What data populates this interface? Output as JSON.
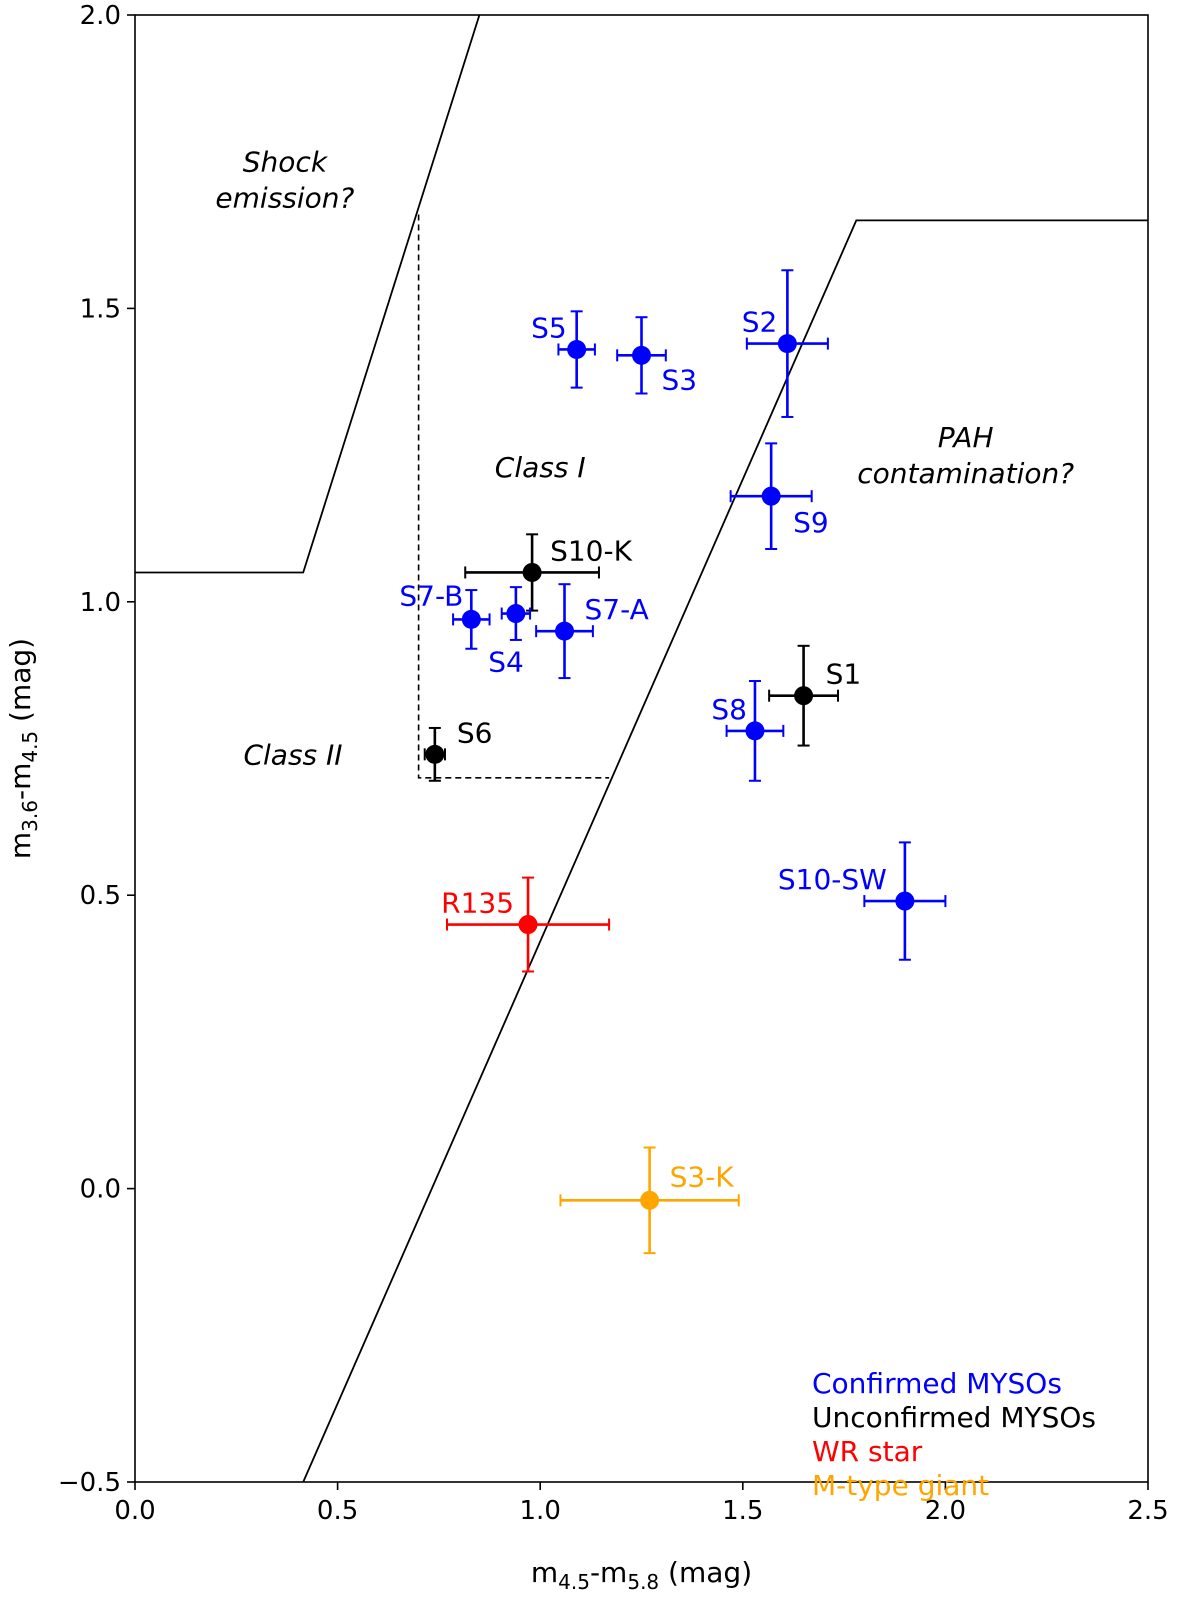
{
  "chart_data": {
    "type": "scatter",
    "xlabel": "m4.5-m5.8 (mag)",
    "ylabel": "m3.6-m4.5 (mag)",
    "xlim": [
      0.0,
      2.5
    ],
    "ylim": [
      -0.5,
      2.0
    ],
    "x_ticks": [
      "0.0",
      "0.5",
      "1.0",
      "1.5",
      "2.0",
      "2.5"
    ],
    "y_ticks": [
      "−0.5",
      "0.0",
      "0.5",
      "1.0",
      "1.5",
      "2.0"
    ],
    "grid": false,
    "colors": {
      "confirmed": "#0000ff",
      "unconfirmed": "#000000",
      "wr": "#ff0000",
      "giant": "#ffa500"
    },
    "points": [
      {
        "label": "S5",
        "x": 1.09,
        "y": 1.43,
        "xerr": 0.045,
        "yerr": 0.065,
        "group": "confirmed"
      },
      {
        "label": "S3",
        "x": 1.25,
        "y": 1.42,
        "xerr": 0.06,
        "yerr": 0.065,
        "group": "confirmed"
      },
      {
        "label": "S2",
        "x": 1.61,
        "y": 1.44,
        "xerr": 0.1,
        "yerr": 0.125,
        "group": "confirmed"
      },
      {
        "label": "S9",
        "x": 1.57,
        "y": 1.18,
        "xerr": 0.1,
        "yerr": 0.09,
        "group": "confirmed"
      },
      {
        "label": "S10-K",
        "x": 0.98,
        "y": 1.05,
        "xerr": 0.165,
        "yerr": 0.065,
        "group": "unconfirmed"
      },
      {
        "label": "S7-B",
        "x": 0.83,
        "y": 0.97,
        "xerr": 0.045,
        "yerr": 0.05,
        "group": "confirmed"
      },
      {
        "label": "S4",
        "x": 0.94,
        "y": 0.98,
        "xerr": 0.035,
        "yerr": 0.045,
        "group": "confirmed"
      },
      {
        "label": "S7-A",
        "x": 1.06,
        "y": 0.95,
        "xerr": 0.07,
        "yerr": 0.08,
        "group": "confirmed"
      },
      {
        "label": "S1",
        "x": 1.65,
        "y": 0.84,
        "xerr": 0.085,
        "yerr": 0.085,
        "group": "unconfirmed"
      },
      {
        "label": "S8",
        "x": 1.53,
        "y": 0.78,
        "xerr": 0.07,
        "yerr": 0.085,
        "group": "confirmed"
      },
      {
        "label": "S6",
        "x": 0.74,
        "y": 0.74,
        "xerr": 0.025,
        "yerr": 0.045,
        "group": "unconfirmed"
      },
      {
        "label": "S10-SW",
        "x": 1.9,
        "y": 0.49,
        "xerr": 0.1,
        "yerr": 0.1,
        "group": "confirmed"
      },
      {
        "label": "R135",
        "x": 0.97,
        "y": 0.45,
        "xerr": 0.2,
        "yerr": 0.08,
        "group": "wr"
      },
      {
        "label": "S3-K",
        "x": 1.27,
        "y": -0.02,
        "xerr": 0.22,
        "yerr": 0.09,
        "group": "giant"
      }
    ],
    "region_lines": [
      {
        "name": "shock-boundary",
        "style": "solid",
        "points": [
          [
            0.0,
            1.05
          ],
          [
            0.415,
            1.05
          ],
          [
            0.85,
            2.0
          ]
        ]
      },
      {
        "name": "pah-boundary",
        "style": "solid",
        "points": [
          [
            0.415,
            -0.5
          ],
          [
            1.78,
            1.65
          ],
          [
            2.5,
            1.65
          ]
        ]
      },
      {
        "name": "class-boundary",
        "style": "dashed",
        "points": [
          [
            0.7,
            1.66
          ],
          [
            0.7,
            0.7
          ],
          [
            1.17,
            0.7
          ]
        ]
      }
    ],
    "region_labels": [
      {
        "lines": [
          "Shock",
          "emission?"
        ],
        "x": 0.37,
        "y": 1.72
      },
      {
        "lines": [
          "Class I"
        ],
        "x": 1.0,
        "y": 1.23
      },
      {
        "lines": [
          "PAH",
          "contamination?"
        ],
        "x": 2.05,
        "y": 1.25
      },
      {
        "lines": [
          "Class II"
        ],
        "x": 0.39,
        "y": 0.74
      }
    ],
    "legend": {
      "placement": "bottom-right",
      "entries": [
        {
          "label": "Confirmed MYSOs",
          "group": "confirmed"
        },
        {
          "label": "Unconfirmed MYSOs",
          "group": "unconfirmed"
        },
        {
          "label": "WR star",
          "group": "wr"
        },
        {
          "label": "M-type giant",
          "group": "giant"
        }
      ]
    }
  }
}
